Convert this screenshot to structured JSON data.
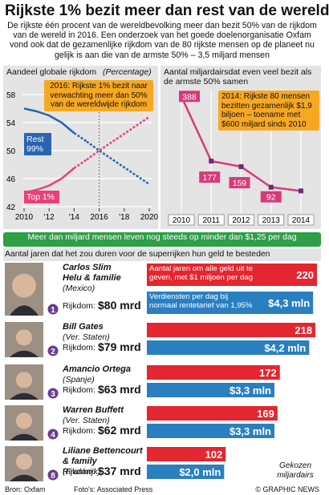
{
  "title": "Rijkste 1% bezit meer dan rest van de wereld",
  "subtitle": "De rijkste één procent van de wereldbevolking meer dan bezit 50% van de rijkdom van de wereld in 2016. Een onderzoek van het goede doelenorganisatie Oxfam vond ook dat de gezamenlijke rijkdom van de 80 rijkste mensen op de planeet nu gelijk is aan die van de armste 50% – 3,5 miljard mensen",
  "chart_data": [
    {
      "type": "line",
      "title": "Aandeel globale rijkdom",
      "subtitle": "(Percentage)",
      "x": [
        2010,
        2011,
        2012,
        2013,
        2014,
        2015,
        2016,
        2017,
        2018,
        2019,
        2020
      ],
      "series": [
        {
          "name": "Rest 99%",
          "color": "#2a64b0",
          "values": [
            56,
            55.6,
            55,
            54,
            52.5,
            51.3,
            50,
            48.8,
            47.6,
            46.4,
            45.2
          ]
        },
        {
          "name": "Top 1%",
          "color": "#e8417a",
          "values": [
            44,
            44.4,
            45,
            46,
            47.5,
            48.7,
            50,
            51.2,
            52.4,
            53.6,
            54.8
          ]
        }
      ],
      "projection_from": 2014,
      "xlim": [
        2010,
        2020
      ],
      "xticks": [
        2010,
        {
          "value": 2012,
          "label": "'12"
        },
        {
          "value": 2014,
          "label": "'14"
        },
        2016,
        {
          "value": 2018,
          "label": "'18"
        },
        2020
      ],
      "ylim": [
        42,
        58
      ],
      "yticks": [
        42,
        46,
        50,
        54,
        58
      ],
      "grid": true,
      "annotation": "2016: Rijkste 1% bezit naar verwachting meer dan 50% van de wereldwijde rijkdom",
      "annotation_x": 2016
    },
    {
      "type": "line",
      "title": "Aantal miljardairsdat even veel bezit als de armste 50% samen",
      "categories": [
        "2010",
        "2011",
        "2012",
        "2013",
        "2014"
      ],
      "values": [
        388,
        177,
        159,
        92,
        80
      ],
      "value_labels": [
        "388",
        "177",
        "159",
        "92",
        null
      ],
      "color": "#d63a7a",
      "ylim": [
        0,
        420
      ],
      "grid": true,
      "annotation": "2014: Rijkste 80 mensen bezitten gezamenlijk $1,9 biljoen – toename met $600 miljard sinds 2010"
    },
    {
      "type": "hbar",
      "title": "Aantal jaren dat het zou duren voor de superrijken hun geld te besteden",
      "categories": [
        "Carlos Slim Helu & familie",
        "Bill Gates",
        "Amancio Ortega",
        "Warren Buffett",
        "Liliane Bettencourt & family"
      ],
      "countries": [
        "(Mexico)",
        "(Ver. Staten)",
        "(Spanje)",
        "(Ver. Staten)",
        "(Frankrijk)"
      ],
      "ranks": [
        1,
        2,
        3,
        4,
        8
      ],
      "wealth_label": "Rijkdom:",
      "wealth": [
        80,
        79,
        63,
        62,
        37
      ],
      "wealth_labels": [
        "$80 mrd",
        "$79 mrd",
        "$63 mrd",
        "$62 mrd",
        "$37 mrd"
      ],
      "series": [
        {
          "name": "Aantal jaren om alle geld uit te geven, met $1 miljoen per dag",
          "color": "#e3262f",
          "values": [
            220,
            218,
            172,
            169,
            102
          ],
          "xlim": [
            0,
            220
          ]
        },
        {
          "name": "Verdiensten per dag bij normaal rentetarief van 1,95%",
          "color": "#2a7fc0",
          "values": [
            4.3,
            4.2,
            3.3,
            3.3,
            2.0
          ],
          "value_labels": [
            "$4,3 mln",
            "$4,2 mln",
            "$3,3 mln",
            "$3,3 mln",
            "$2,0 mln"
          ],
          "xlim": [
            0,
            4.4
          ]
        }
      ],
      "note": "Gekozen miljardairs"
    }
  ],
  "banner": "Meer dan miljard mensen leven nog steeds op minder dan $1,25 per dag",
  "footer": {
    "source": "Bron: Oxfam",
    "photos": "Foto's: Associated Press",
    "credit": "© GRAPHIC NEWS"
  }
}
